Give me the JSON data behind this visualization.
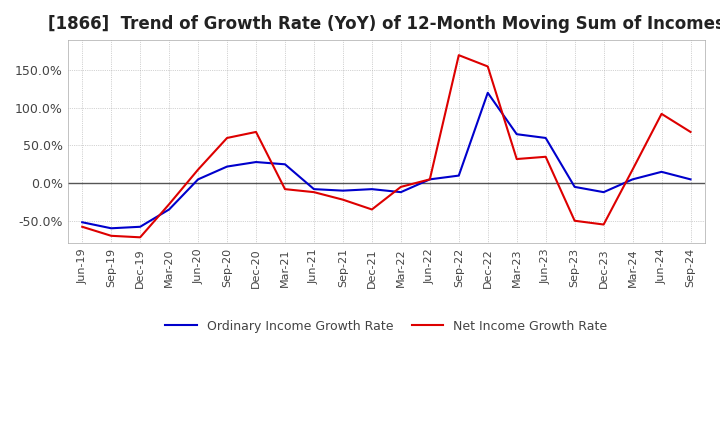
{
  "title": "[1866]  Trend of Growth Rate (YoY) of 12-Month Moving Sum of Incomes",
  "title_fontsize": 12,
  "ylim": [
    -80,
    190
  ],
  "yticks": [
    -50,
    0,
    50,
    100,
    150
  ],
  "background_color": "#ffffff",
  "grid_color": "#aaaaaa",
  "ordinary_color": "#0000cc",
  "net_color": "#dd0000",
  "legend_ordinary": "Ordinary Income Growth Rate",
  "legend_net": "Net Income Growth Rate",
  "dates": [
    "Jun-19",
    "Sep-19",
    "Dec-19",
    "Mar-20",
    "Jun-20",
    "Sep-20",
    "Dec-20",
    "Mar-21",
    "Jun-21",
    "Sep-21",
    "Dec-21",
    "Mar-22",
    "Jun-22",
    "Sep-22",
    "Dec-22",
    "Mar-23",
    "Jun-23",
    "Sep-23",
    "Dec-23",
    "Mar-24",
    "Jun-24",
    "Sep-24"
  ],
  "ordinary_income": [
    -52,
    -60,
    -58,
    -35,
    5,
    22,
    28,
    25,
    -8,
    -10,
    -8,
    -12,
    5,
    10,
    120,
    65,
    60,
    -5,
    -12,
    5,
    15,
    5
  ],
  "net_income": [
    -58,
    -70,
    -72,
    -28,
    18,
    60,
    68,
    -8,
    -12,
    -22,
    -35,
    -5,
    5,
    170,
    155,
    32,
    35,
    -50,
    -55,
    18,
    92,
    68
  ]
}
